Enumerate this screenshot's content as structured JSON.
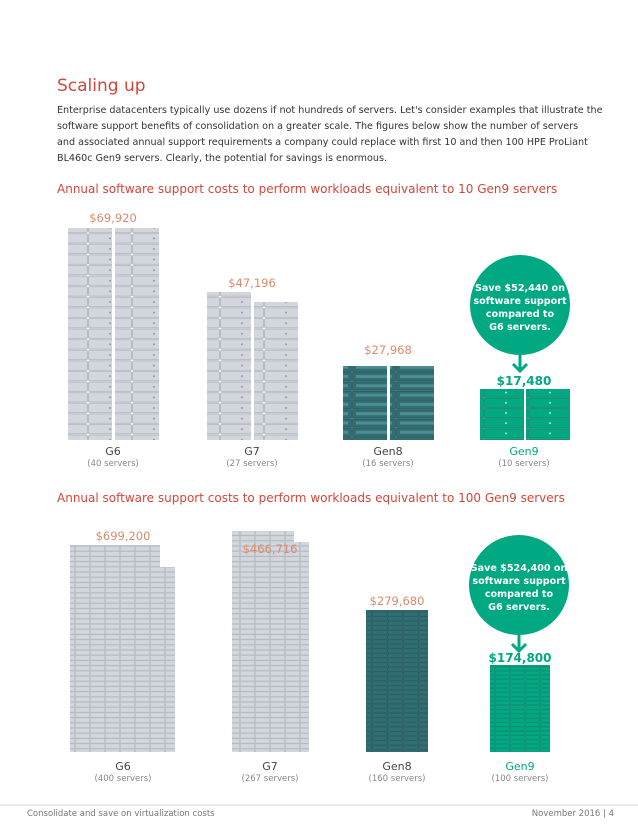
{
  "header": {
    "title": "Scaling up",
    "paragraph": [
      "Enterprise datacenters typically use dozens if not hundreds of servers. Let's consider examples that illustrate the",
      "software support benefits of consolidation on a greater scale. The figures below show the number of servers",
      "and associated annual support requirements a company could replace with first 10 and then 100 HPE ProLiant",
      "BL460c Gen9 servers. Clearly, the potential for savings is enormous."
    ]
  },
  "charts": [
    {
      "heading": "Annual software support costs to perform workloads equivalent to 10 Gen9 servers",
      "bubble": [
        "Save $52,440 on",
        "software support",
        "compared to",
        "G6 servers."
      ],
      "bars": [
        {
          "cost": "$69,920",
          "name": "G6",
          "count": "(40 servers)"
        },
        {
          "cost": "$47,196",
          "name": "G7",
          "count": "(27 servers)"
        },
        {
          "cost": "$27,968",
          "name": "Gen8",
          "count": "(16 servers)"
        },
        {
          "cost": "$17,480",
          "name": "Gen9",
          "count": "(10 servers)"
        }
      ]
    },
    {
      "heading": "Annual software support costs to perform workloads equivalent to 100 Gen9 servers",
      "bubble": [
        "Save $524,400 on",
        "software support",
        "compared to",
        "G6 servers."
      ],
      "bars": [
        {
          "cost": "$699,200",
          "name": "G6",
          "count": "(400 servers)"
        },
        {
          "cost": "$466,716",
          "name": "G7",
          "count": "(267 servers)"
        },
        {
          "cost": "$279,680",
          "name": "Gen8",
          "count": "(160 servers)"
        },
        {
          "cost": "$174,800",
          "name": "Gen9",
          "count": "(100 servers)"
        }
      ]
    }
  ],
  "footer": {
    "left": "Consolidate and save on virtualization costs",
    "right": "November 2016 | 4"
  }
}
